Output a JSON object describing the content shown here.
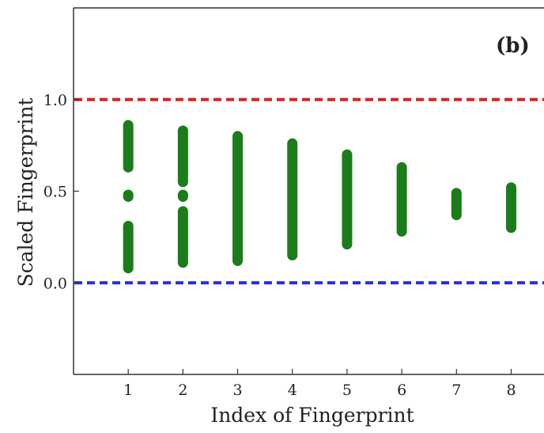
{
  "chart_data": {
    "type": "scatter",
    "panel_label": "(b)",
    "xlabel": "Index of Fingerprint",
    "ylabel": "Scaled Fingerprint",
    "xlim": [
      0,
      8.6
    ],
    "ylim": [
      -0.5,
      1.5
    ],
    "x_ticks": [
      "1",
      "2",
      "3",
      "4",
      "5",
      "6",
      "7",
      "8"
    ],
    "y_ticks": [
      {
        "value": 0.0,
        "label": "0.0"
      },
      {
        "value": 0.5,
        "label": "0.5"
      },
      {
        "value": 1.0,
        "label": "1.0"
      }
    ],
    "grid": false,
    "reference_lines": [
      {
        "y": 1.0,
        "style": "dashed",
        "color": "#e02020"
      },
      {
        "y": 0.0,
        "style": "dashed",
        "color": "#2a2ae0"
      }
    ],
    "marker_color": "#1a7d1a",
    "series": [
      {
        "x": 1,
        "ranges": [
          [
            0.08,
            0.31
          ],
          [
            0.47,
            0.48
          ],
          [
            0.63,
            0.86
          ]
        ]
      },
      {
        "x": 2,
        "ranges": [
          [
            0.11,
            0.39
          ],
          [
            0.47,
            0.48
          ],
          [
            0.55,
            0.83
          ]
        ]
      },
      {
        "x": 3,
        "ranges": [
          [
            0.12,
            0.8
          ]
        ]
      },
      {
        "x": 4,
        "ranges": [
          [
            0.15,
            0.76
          ]
        ]
      },
      {
        "x": 5,
        "ranges": [
          [
            0.21,
            0.7
          ]
        ]
      },
      {
        "x": 6,
        "ranges": [
          [
            0.28,
            0.63
          ]
        ]
      },
      {
        "x": 7,
        "ranges": [
          [
            0.37,
            0.49
          ]
        ]
      },
      {
        "x": 8,
        "ranges": [
          [
            0.3,
            0.52
          ]
        ]
      }
    ]
  }
}
